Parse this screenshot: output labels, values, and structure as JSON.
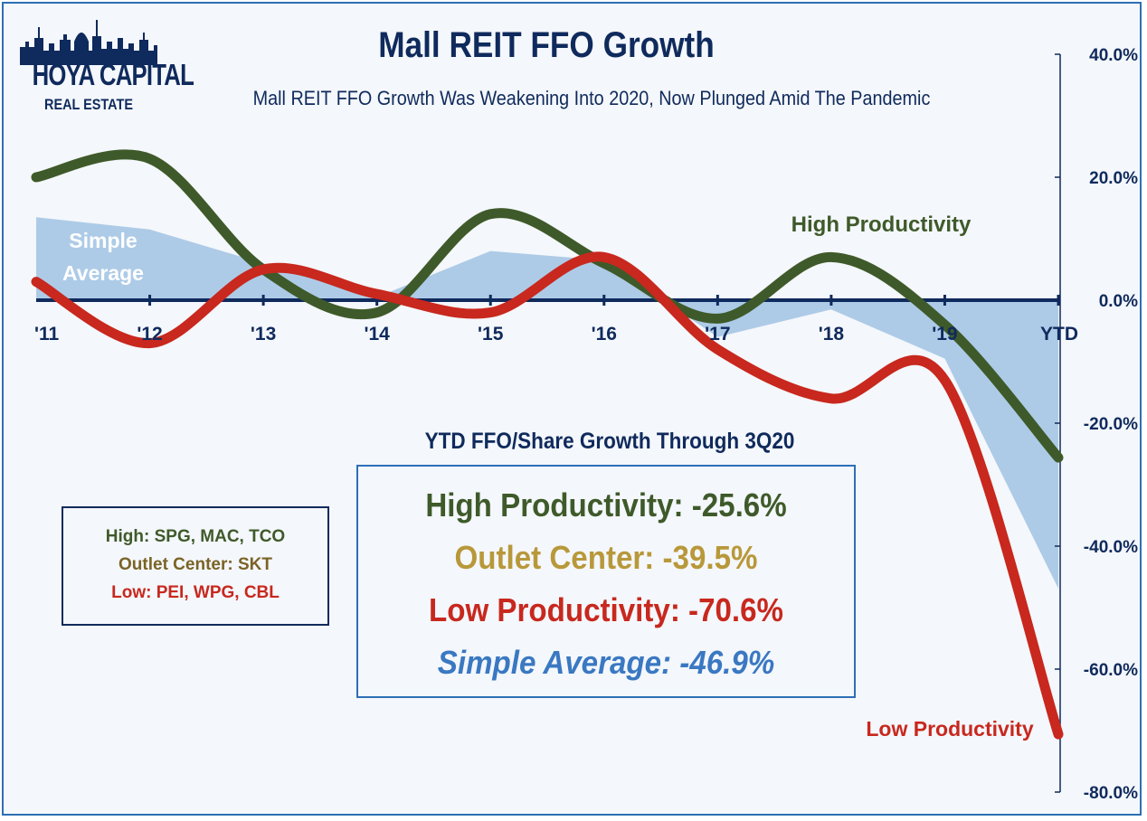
{
  "header": {
    "title": "Mall REIT FFO Growth",
    "subtitle": "Mall REIT FFO Growth Was Weakening Into 2020, Now Plunged Amid The Pandemic"
  },
  "logo": {
    "main": "HOYA CAPITAL",
    "sub": "REAL ESTATE"
  },
  "legend_box": {
    "high": "High: SPG, MAC, TCO",
    "outlet": "Outlet Center: SKT",
    "low": "Low: PEI, WPG, CBL"
  },
  "ytd_box": {
    "heading": "YTD FFO/Share Growth Through 3Q20",
    "high": "High Productivity: -25.6%",
    "outlet": "Outlet Center: -39.5%",
    "low": "Low Productivity: -70.6%",
    "average": "Simple Average: -46.9%"
  },
  "colors": {
    "high": "#3f5a2a",
    "outlet": "#b8983a",
    "low": "#c8281e",
    "average_fill": "#a9c8e6",
    "average_text": "#3a78c2",
    "navy": "#0f2a5c"
  },
  "chart_data": {
    "type": "line",
    "categories": [
      "'11",
      "'12",
      "'13",
      "'14",
      "'15",
      "'16",
      "'17",
      "'18",
      "'19",
      "YTD"
    ],
    "ylim": [
      -80,
      40
    ],
    "yticks": [
      "40.0%",
      "20.0%",
      "0.0%",
      "-20.0%",
      "-40.0%",
      "-60.0%",
      "-80.0%"
    ],
    "grid": false,
    "series": [
      {
        "name": "High Productivity",
        "kind": "line",
        "color": "#3f5a2a",
        "values": [
          20,
          23,
          5,
          -2,
          14,
          6,
          -3,
          7,
          -4,
          -25.6
        ]
      },
      {
        "name": "Low Productivity",
        "kind": "line",
        "color": "#c8281e",
        "values": [
          3,
          -7,
          5,
          1,
          -2,
          7,
          -8,
          -16,
          -13,
          -70.6
        ]
      },
      {
        "name": "Simple Average",
        "kind": "area",
        "color": "#a9c8e6",
        "values": [
          13.5,
          11.5,
          6,
          0.5,
          8,
          6.5,
          -6,
          -1.5,
          -9.5,
          -46.9
        ]
      }
    ],
    "annotations": {
      "high": "High Productivity",
      "low": "Low Productivity",
      "average_1": "Simple",
      "average_2": "Average"
    }
  }
}
